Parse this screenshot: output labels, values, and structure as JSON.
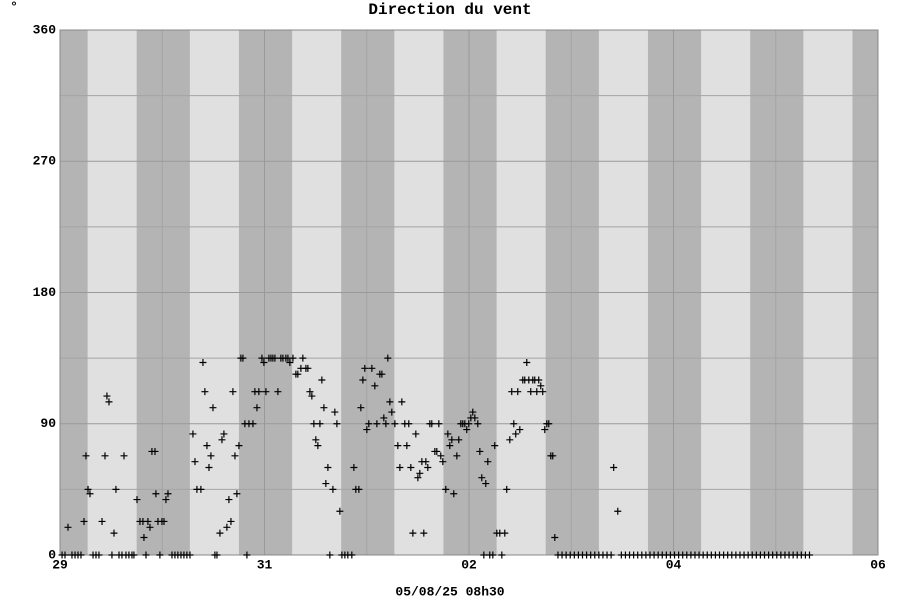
{
  "chart_data": {
    "type": "scatter",
    "title": "Direction du vent",
    "ylabel": "°",
    "xlabel": "05/08/25 08h30",
    "color": "#000000",
    "grid": true,
    "xlim": [
      0,
      8
    ],
    "xticks": [
      {
        "value": 0,
        "label": "29"
      },
      {
        "value": 2,
        "label": "31"
      },
      {
        "value": 4,
        "label": "02"
      },
      {
        "value": 6,
        "label": "04"
      },
      {
        "value": 8,
        "label": "06"
      }
    ],
    "ylim": [
      0,
      360
    ],
    "yticks": [
      0,
      90,
      180,
      270,
      360
    ],
    "x": [
      0.02,
      0.049,
      0.078,
      0.117,
      0.147,
      0.176,
      0.205,
      0.235,
      0.254,
      0.274,
      0.293,
      0.323,
      0.352,
      0.381,
      0.411,
      0.44,
      0.459,
      0.479,
      0.508,
      0.528,
      0.547,
      0.577,
      0.606,
      0.626,
      0.645,
      0.674,
      0.704,
      0.723,
      0.753,
      0.782,
      0.811,
      0.821,
      0.841,
      0.86,
      0.88,
      0.899,
      0.929,
      0.938,
      0.958,
      0.977,
      0.997,
      1.017,
      1.036,
      1.056,
      1.095,
      1.124,
      1.153,
      1.183,
      1.212,
      1.241,
      1.271,
      1.3,
      1.32,
      1.339,
      1.378,
      1.398,
      1.417,
      1.437,
      1.457,
      1.476,
      1.496,
      1.515,
      1.535,
      1.564,
      1.584,
      1.603,
      1.632,
      1.652,
      1.672,
      1.691,
      1.711,
      1.73,
      1.75,
      1.769,
      1.789,
      1.808,
      1.828,
      1.848,
      1.887,
      1.906,
      1.926,
      1.945,
      1.975,
      1.994,
      2.014,
      2.043,
      2.063,
      2.082,
      2.102,
      2.131,
      2.16,
      2.18,
      2.209,
      2.229,
      2.248,
      2.278,
      2.307,
      2.326,
      2.356,
      2.375,
      2.405,
      2.424,
      2.444,
      2.463,
      2.483,
      2.502,
      2.522,
      2.542,
      2.561,
      2.581,
      2.6,
      2.62,
      2.639,
      2.669,
      2.688,
      2.708,
      2.737,
      2.757,
      2.786,
      2.815,
      2.854,
      2.874,
      2.893,
      2.923,
      2.942,
      2.962,
      2.981,
      3.001,
      3.02,
      3.05,
      3.079,
      3.099,
      3.128,
      3.148,
      3.167,
      3.187,
      3.206,
      3.226,
      3.245,
      3.275,
      3.304,
      3.324,
      3.343,
      3.372,
      3.392,
      3.411,
      3.431,
      3.451,
      3.48,
      3.5,
      3.519,
      3.539,
      3.558,
      3.578,
      3.597,
      3.617,
      3.636,
      3.666,
      3.685,
      3.705,
      3.724,
      3.744,
      3.773,
      3.793,
      3.812,
      3.832,
      3.851,
      3.881,
      3.9,
      3.92,
      3.939,
      3.959,
      3.978,
      3.998,
      4.018,
      4.037,
      4.057,
      4.086,
      4.106,
      4.125,
      4.145,
      4.164,
      4.184,
      4.203,
      4.233,
      4.252,
      4.272,
      4.301,
      4.321,
      4.35,
      4.369,
      4.399,
      4.418,
      4.438,
      4.457,
      4.477,
      4.497,
      4.526,
      4.545,
      4.565,
      4.585,
      4.604,
      4.624,
      4.643,
      4.663,
      4.682,
      4.702,
      4.721,
      4.741,
      4.761,
      4.78,
      4.8,
      4.819,
      4.839,
      4.87,
      4.91,
      4.95,
      4.99,
      5.03,
      5.07,
      5.11,
      5.15,
      5.19,
      5.23,
      5.27,
      5.31,
      5.35,
      5.39,
      5.415,
      5.455,
      5.49,
      5.53,
      5.57,
      5.61,
      5.65,
      5.69,
      5.73,
      5.77,
      5.81,
      5.85,
      5.89,
      5.93,
      5.97,
      6.01,
      6.05,
      6.09,
      6.13,
      6.17,
      6.21,
      6.25,
      6.29,
      6.33,
      6.37,
      6.41,
      6.45,
      6.49,
      6.53,
      6.57,
      6.61,
      6.65,
      6.69,
      6.73,
      6.77,
      6.81,
      6.85,
      6.89,
      6.93,
      6.97,
      7.01,
      7.05,
      7.09,
      7.13,
      7.17,
      7.21,
      7.25,
      7.29,
      7.33
    ],
    "values": [
      0,
      0,
      19,
      0,
      0,
      0,
      0,
      23,
      68,
      45,
      42,
      0,
      0,
      0,
      23,
      68,
      109,
      105,
      0,
      15,
      45,
      0,
      0,
      68,
      0,
      0,
      0,
      0,
      38,
      23,
      23,
      12,
      0,
      23,
      19,
      71,
      71,
      42,
      23,
      0,
      23,
      23,
      38,
      42,
      0,
      0,
      0,
      0,
      0,
      0,
      0,
      83,
      64,
      45,
      45,
      132,
      112,
      75,
      60,
      68,
      101,
      0,
      0,
      15,
      79,
      83,
      19,
      38,
      23,
      112,
      68,
      42,
      75,
      135,
      135,
      90,
      0,
      90,
      90,
      112,
      101,
      112,
      135,
      132,
      112,
      135,
      135,
      135,
      135,
      112,
      135,
      135,
      135,
      135,
      132,
      135,
      124,
      124,
      128,
      135,
      128,
      128,
      112,
      109,
      90,
      79,
      75,
      90,
      120,
      101,
      49,
      60,
      0,
      45,
      98,
      90,
      30,
      0,
      0,
      0,
      0,
      60,
      45,
      45,
      101,
      120,
      128,
      86,
      90,
      128,
      116,
      90,
      124,
      124,
      94,
      90,
      135,
      105,
      98,
      90,
      75,
      60,
      105,
      90,
      75,
      90,
      60,
      15,
      83,
      53,
      56,
      64,
      15,
      64,
      60,
      90,
      90,
      71,
      71,
      90,
      68,
      64,
      45,
      83,
      75,
      79,
      42,
      68,
      79,
      90,
      90,
      90,
      86,
      90,
      94,
      98,
      94,
      90,
      71,
      53,
      0,
      49,
      64,
      0,
      0,
      75,
      15,
      15,
      0,
      15,
      45,
      79,
      112,
      90,
      83,
      112,
      86,
      120,
      120,
      132,
      120,
      112,
      120,
      120,
      112,
      120,
      116,
      112,
      86,
      90,
      90,
      68,
      68,
      12,
      0,
      0,
      0,
      0,
      0,
      0,
      0,
      0,
      0,
      0,
      0,
      0,
      0,
      0,
      60,
      30,
      0,
      0,
      0,
      0,
      0,
      0,
      0,
      0,
      0,
      0,
      0,
      0,
      0,
      0,
      0,
      0,
      0,
      0,
      0,
      0,
      0,
      0,
      0,
      0,
      0,
      0,
      0,
      0,
      0,
      0,
      0,
      0,
      0,
      0,
      0,
      0,
      0,
      0,
      0,
      0,
      0,
      0,
      0,
      0,
      0,
      0,
      0
    ]
  }
}
